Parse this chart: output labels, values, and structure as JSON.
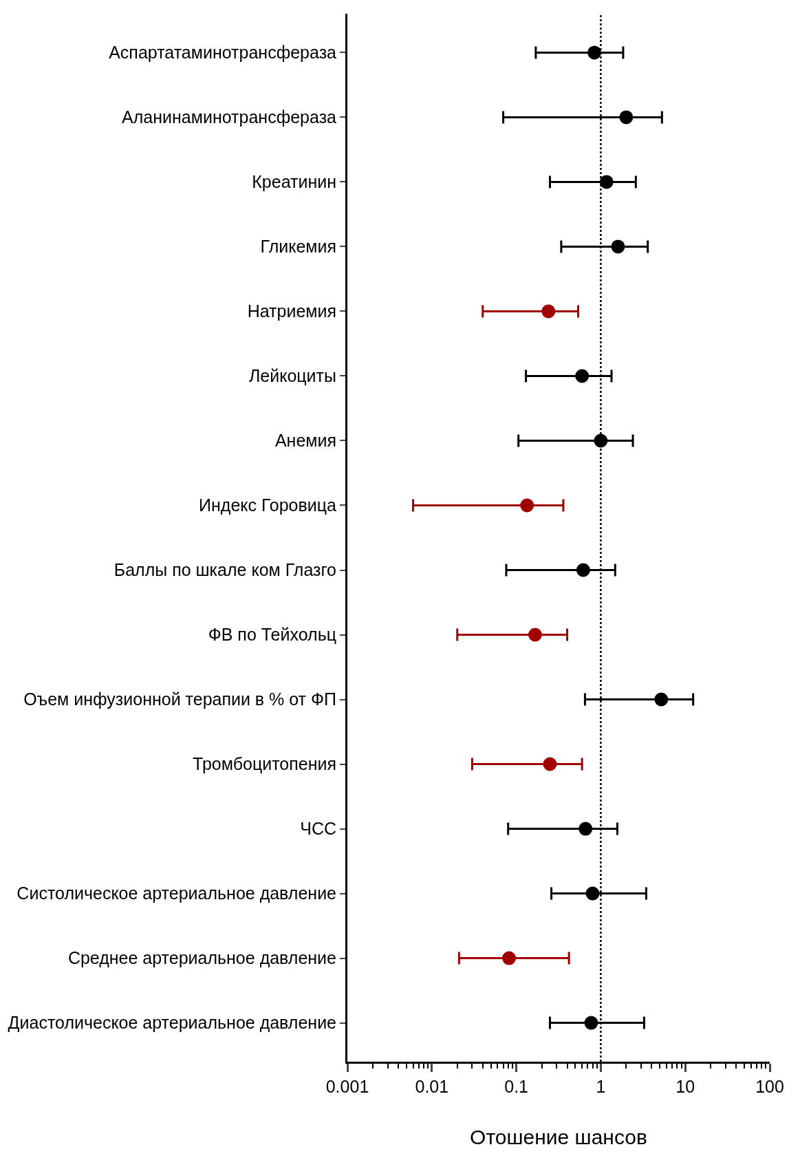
{
  "chart_data": {
    "type": "scatter",
    "orientation": "horizontal",
    "xlabel": "Отошение шансов",
    "log": "x",
    "marker": "circle",
    "categories": [
      "Аспартатаминотрансфераза",
      "Аланинаминотрансфераза",
      "Креатинин",
      "Гликемия",
      "Натриемия",
      "Лейкоциты",
      "Анемия",
      "Индекс Горовица",
      "Баллы по шкале ком Глазго",
      "ФВ по Тейхольц",
      "Оъем инфузионной терапии в % от ФП",
      "Тромбоцитопения",
      "ЧСС",
      "Систолическое артериальное давление",
      "Среднее артериальное давление",
      "Диастолическое артериальное давление"
    ],
    "values": [
      0.84,
      2.0,
      1.17,
      1.6,
      0.24,
      0.6,
      1.0,
      0.134,
      0.62,
      0.167,
      5.2,
      0.25,
      0.66,
      0.8,
      0.082,
      0.77
    ],
    "errors": [
      [
        0.17,
        1.84
      ],
      [
        0.07,
        5.3
      ],
      [
        0.25,
        2.6
      ],
      [
        0.34,
        3.6
      ],
      [
        0.04,
        0.54
      ],
      [
        0.13,
        1.34
      ],
      [
        0.106,
        2.4
      ],
      [
        0.006,
        0.36
      ],
      [
        0.076,
        1.48
      ],
      [
        0.02,
        0.4
      ],
      [
        0.65,
        12.4
      ],
      [
        0.03,
        0.6
      ],
      [
        0.08,
        1.57
      ],
      [
        0.26,
        3.45
      ],
      [
        0.021,
        0.42
      ],
      [
        0.25,
        3.26
      ]
    ],
    "colors": [
      "#000000",
      "#000000",
      "#000000",
      "#000000",
      "#a00000",
      "#000000",
      "#000000",
      "#a00000",
      "#000000",
      "#a00000",
      "#000000",
      "#a00000",
      "#000000",
      "#000000",
      "#a00000",
      "#000000"
    ],
    "xlim": [
      0.001,
      100
    ],
    "xticks": [
      0.001,
      0.01,
      0.1,
      1,
      10,
      100
    ],
    "ref_lines": [
      {
        "axis": "x",
        "value": 1,
        "line_style": "dotted",
        "color": "#000000"
      }
    ],
    "grid": false
  }
}
